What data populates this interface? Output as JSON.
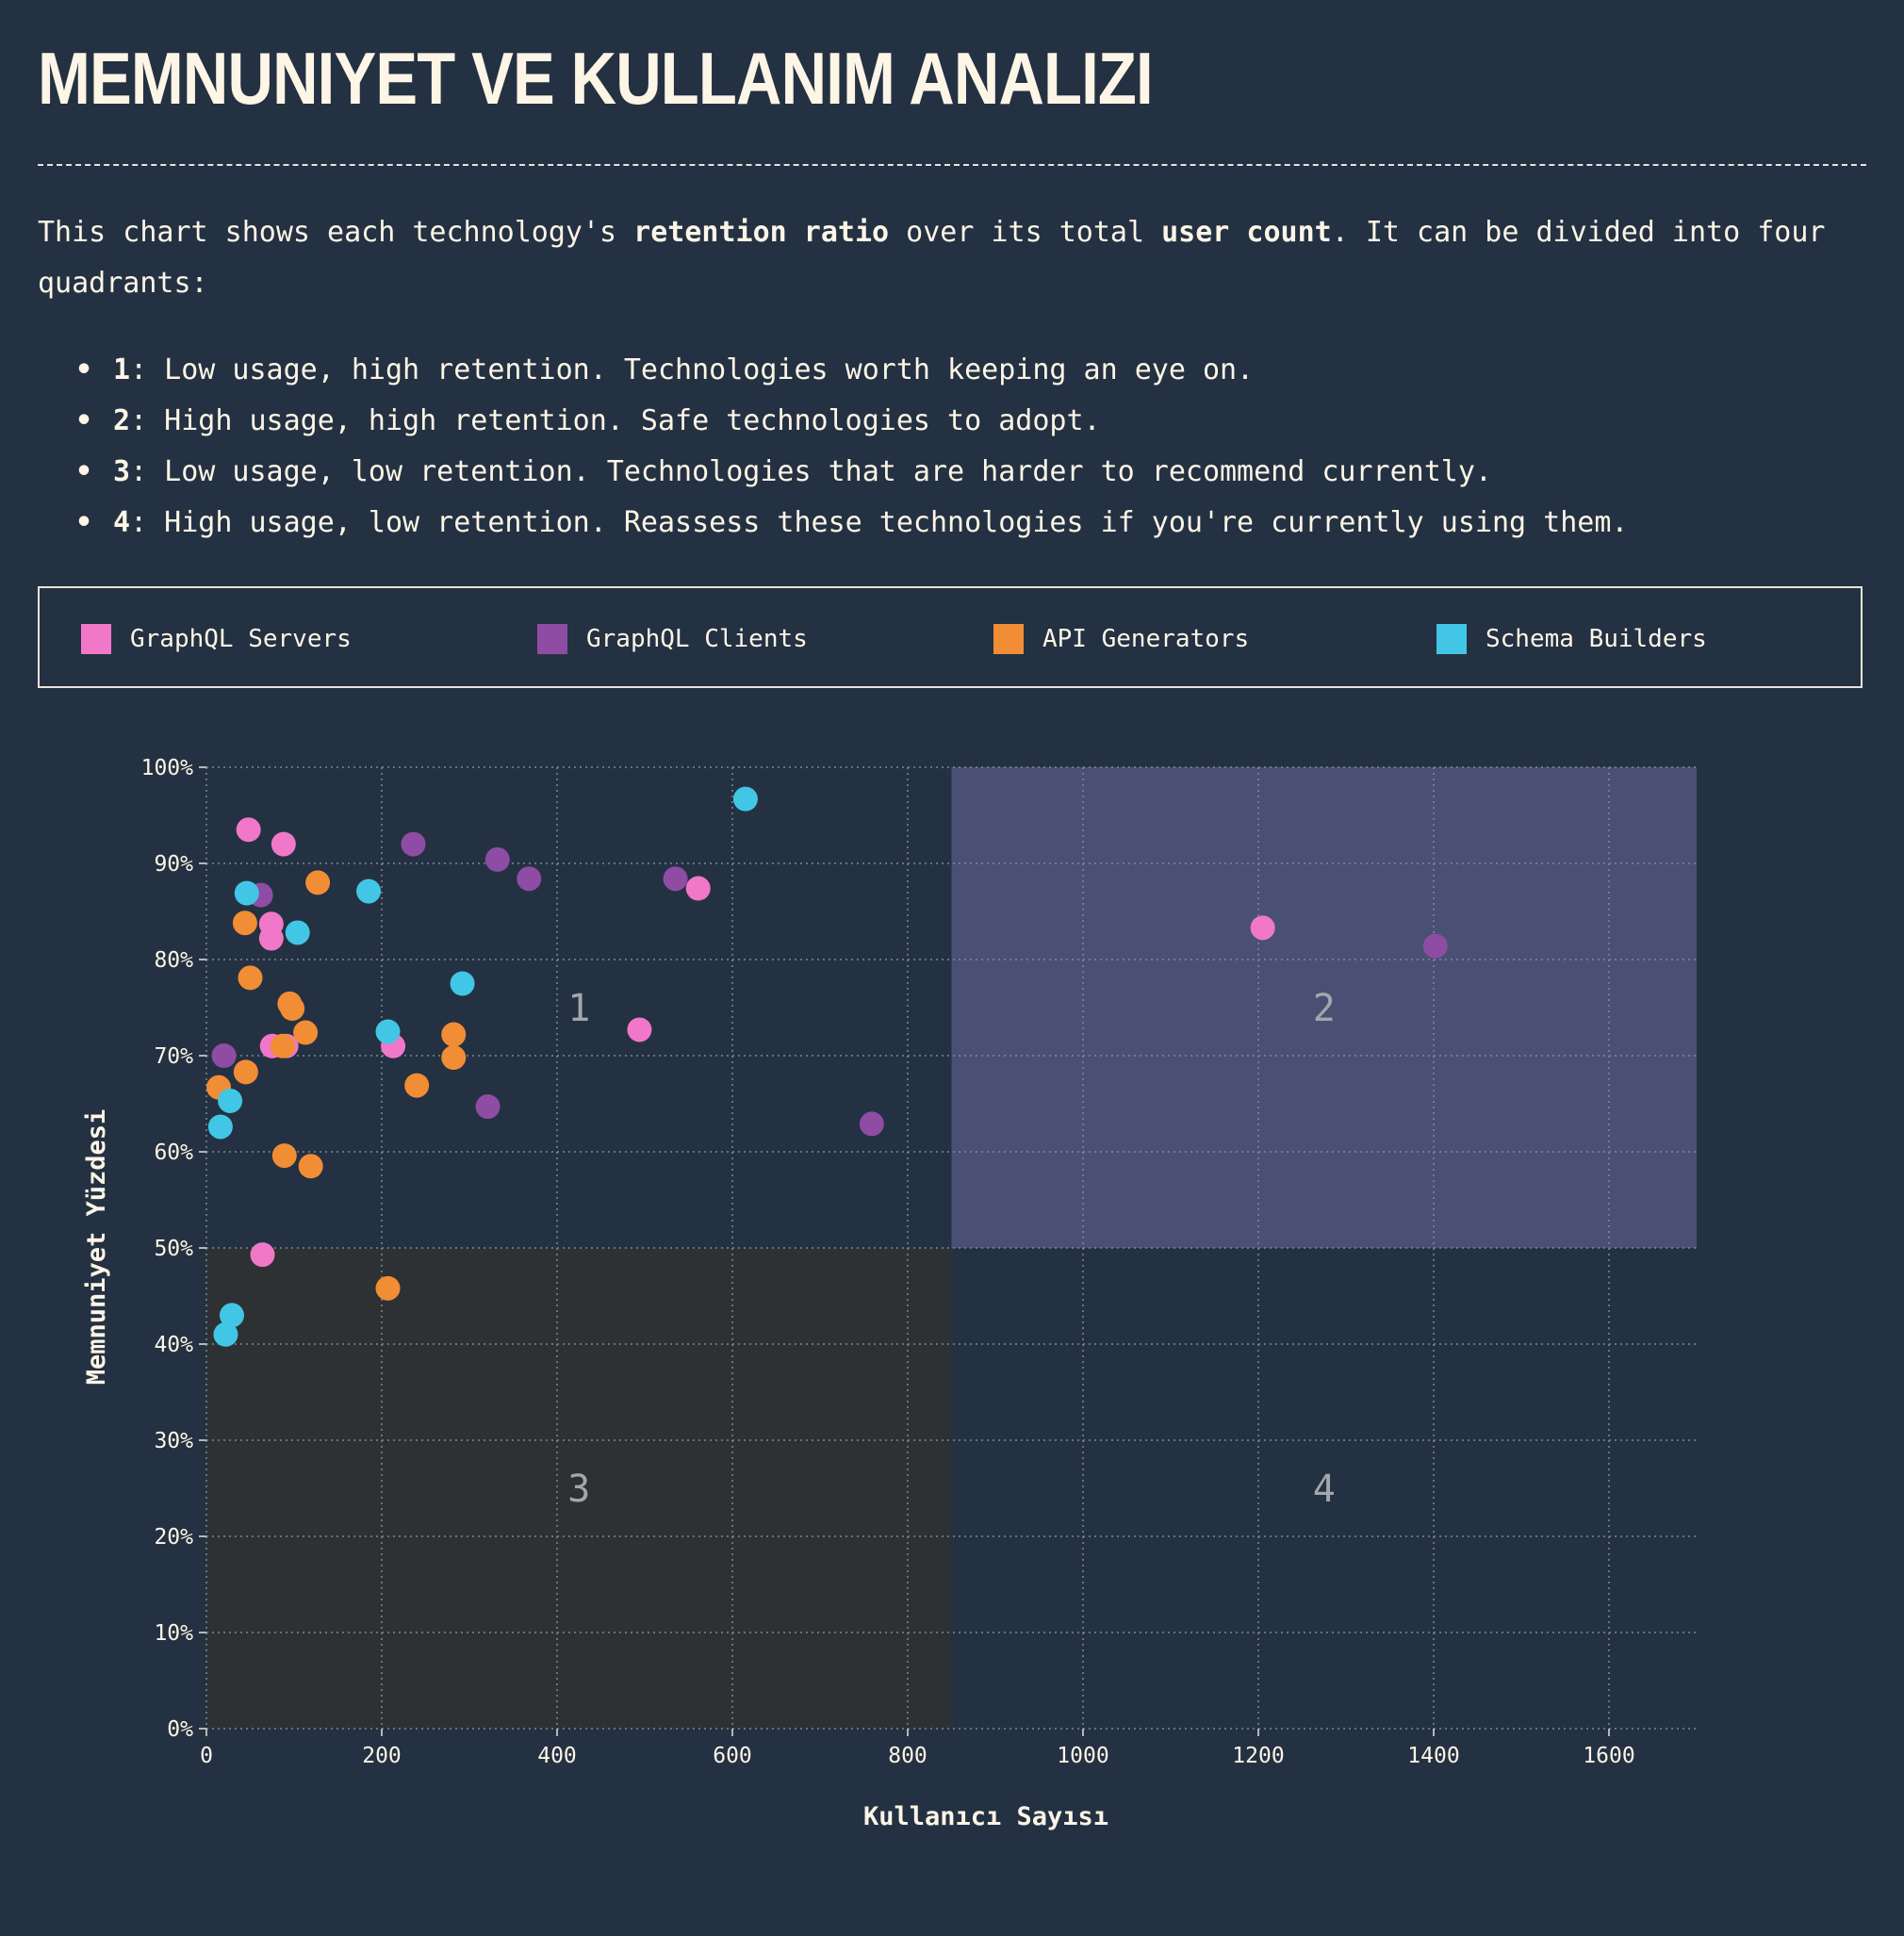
{
  "title": "MEMNUNIYET VE KULLANIM ANALIZI",
  "intro": {
    "part1": "This chart shows each technology's ",
    "bold1": "retention ratio",
    "part2": " over its total ",
    "bold2": "user count",
    "part3": ". It can be divided into four quadrants:"
  },
  "quadrants": [
    {
      "num": "1",
      "text": ": Low usage, high retention. Technologies worth keeping an eye on."
    },
    {
      "num": "2",
      "text": ": High usage, high retention. Safe technologies to adopt."
    },
    {
      "num": "3",
      "text": ": Low usage, low retention. Technologies that are harder to recommend currently."
    },
    {
      "num": "4",
      "text": ": High usage, low retention. Reassess these technologies if you're currently using them."
    }
  ],
  "legend": [
    {
      "label": "GraphQL Servers",
      "color": "#f177c8"
    },
    {
      "label": "GraphQL Clients",
      "color": "#8e4ca4"
    },
    {
      "label": "API Generators",
      "color": "#f18d35"
    },
    {
      "label": "Schema Builders",
      "color": "#42c6e5"
    }
  ],
  "chart_data": {
    "type": "scatter",
    "xlabel": "Kullanıcı Sayısı",
    "ylabel": "Memnuniyet Yüzdesi",
    "xlim": [
      0,
      1700
    ],
    "ylim": [
      0,
      100
    ],
    "x_ticks": [
      "0",
      "200",
      "400",
      "600",
      "800",
      "1000",
      "1200",
      "1400",
      "1600"
    ],
    "y_ticks": [
      "0%",
      "10%",
      "20%",
      "30%",
      "40%",
      "50%",
      "60%",
      "70%",
      "80%",
      "90%",
      "100%"
    ],
    "grid": true,
    "legend_position": "top",
    "quadrant_split": {
      "x": 850,
      "y": 50
    },
    "quadrant_labels": [
      "1",
      "2",
      "3",
      "4"
    ],
    "series": [
      {
        "name": "GraphQL Servers",
        "color": "#f177c8",
        "points": [
          [
            48,
            93.5
          ],
          [
            88,
            92
          ],
          [
            74,
            83.7
          ],
          [
            74,
            82.2
          ],
          [
            75,
            71
          ],
          [
            91,
            71
          ],
          [
            213,
            71
          ],
          [
            494,
            72.7
          ],
          [
            561,
            87.4
          ],
          [
            1205,
            83.3
          ],
          [
            64,
            49.3
          ]
        ]
      },
      {
        "name": "GraphQL Clients",
        "color": "#8e4ca4",
        "points": [
          [
            62,
            86.7
          ],
          [
            20,
            70
          ],
          [
            236,
            92
          ],
          [
            332,
            90.4
          ],
          [
            368,
            88.4
          ],
          [
            535,
            88.4
          ],
          [
            321,
            64.7
          ],
          [
            759,
            62.9
          ],
          [
            1402,
            81.4
          ]
        ]
      },
      {
        "name": "API Generators",
        "color": "#f18d35",
        "points": [
          [
            127,
            88
          ],
          [
            44,
            83.8
          ],
          [
            50,
            78.1
          ],
          [
            95,
            75.4
          ],
          [
            98,
            74.9
          ],
          [
            113,
            72.4
          ],
          [
            87,
            71
          ],
          [
            45,
            68.3
          ],
          [
            14,
            66.7
          ],
          [
            89,
            59.6
          ],
          [
            119,
            58.5
          ],
          [
            282,
            72.2
          ],
          [
            282,
            69.8
          ],
          [
            240,
            66.9
          ],
          [
            207,
            45.8
          ]
        ]
      },
      {
        "name": "Schema Builders",
        "color": "#42c6e5",
        "points": [
          [
            46,
            86.9
          ],
          [
            104,
            82.8
          ],
          [
            185,
            87.1
          ],
          [
            292,
            77.5
          ],
          [
            207,
            72.5
          ],
          [
            27,
            65.3
          ],
          [
            16,
            62.6
          ],
          [
            29,
            43
          ],
          [
            22,
            41
          ],
          [
            615,
            96.7
          ]
        ]
      }
    ]
  }
}
